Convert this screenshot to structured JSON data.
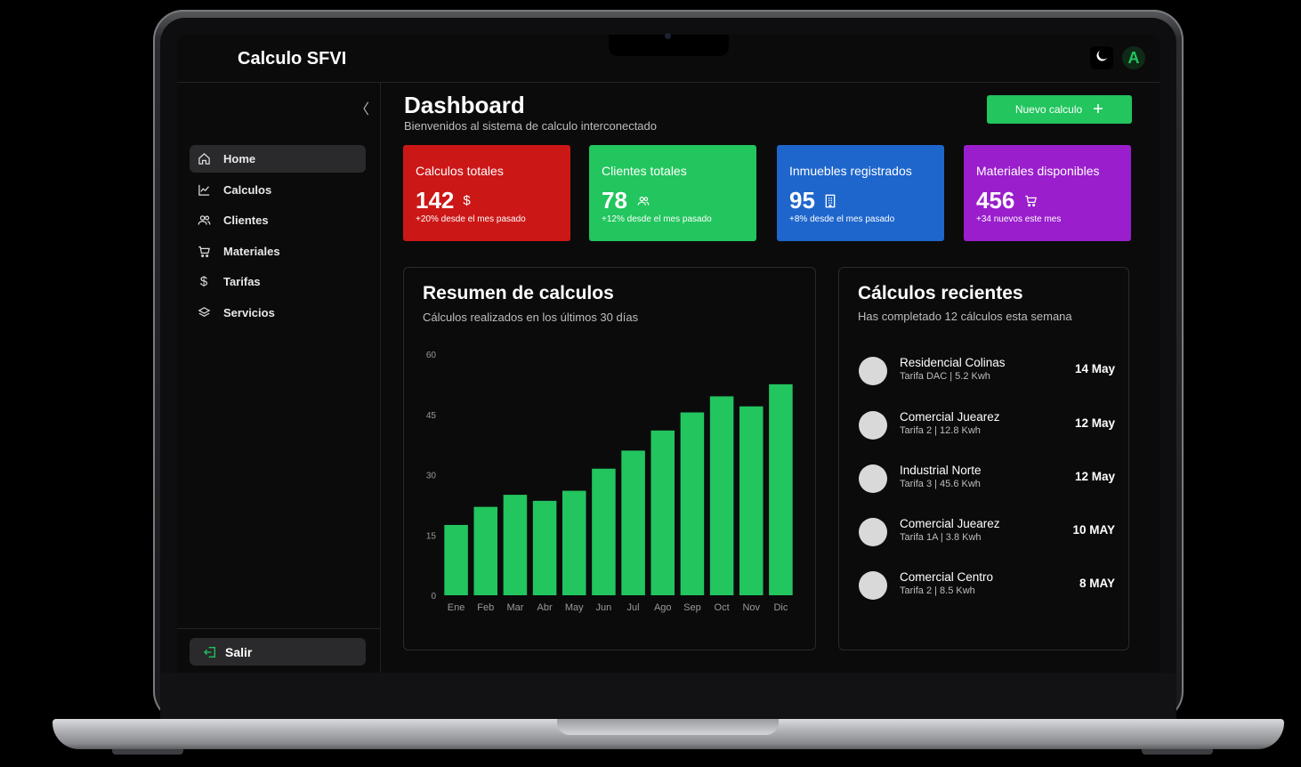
{
  "app": {
    "title": "Calculo SFVI",
    "avatar_letter": "A"
  },
  "sidebar": {
    "collapse_glyph": "〈",
    "items": [
      {
        "label": "Home",
        "icon": "home-icon"
      },
      {
        "label": "Calculos",
        "icon": "chart-line-icon"
      },
      {
        "label": "Clientes",
        "icon": "users-icon"
      },
      {
        "label": "Materiales",
        "icon": "cart-icon"
      },
      {
        "label": "Tarifas",
        "icon": "dollar-icon"
      },
      {
        "label": "Servicios",
        "icon": "layers-icon"
      }
    ],
    "logout_label": "Salir"
  },
  "header": {
    "title": "Dashboard",
    "subtitle": "Bienvenidos al sistema de calculo interconectado",
    "new_button_label": "Nuevo calculo"
  },
  "stats": [
    {
      "title": "Calculos totales",
      "value": "142",
      "sub": "+20% desde el mes pasado",
      "color": "#cc1717",
      "icon": "dollar-icon"
    },
    {
      "title": "Clientes totales",
      "value": "78",
      "sub": "+12% desde el mes pasado",
      "color": "#22c55e",
      "icon": "users-icon"
    },
    {
      "title": "Inmuebles registrados",
      "value": "95",
      "sub": "+8% desde el mes pasado",
      "color": "#1e66cc",
      "icon": "building-icon"
    },
    {
      "title": "Materiales disponibles",
      "value": "456",
      "sub": "+34 nuevos este mes",
      "color": "#9a1ecc",
      "icon": "cart-icon"
    }
  ],
  "summary": {
    "title": "Resumen de calculos",
    "subtitle": "Cálculos realizados en los últimos 30 días"
  },
  "chart_data": {
    "type": "bar",
    "categories": [
      "Ene",
      "Feb",
      "Mar",
      "Abr",
      "May",
      "Jun",
      "Jul",
      "Ago",
      "Sep",
      "Oct",
      "Nov",
      "Dic"
    ],
    "values": [
      17.5,
      22,
      25,
      23.5,
      26,
      31.5,
      36,
      41,
      45.5,
      49.5,
      47,
      52.5
    ],
    "ylim": [
      0,
      60
    ],
    "yticks": [
      "0",
      "15",
      "30",
      "45",
      "60"
    ],
    "title": "",
    "xlabel": "",
    "ylabel": "",
    "color": "#22c55e",
    "grid": false
  },
  "recent": {
    "title": "Cálculos recientes",
    "subtitle": "Has completado 12  cálculos esta semana",
    "items": [
      {
        "name": "Residencial Colinas",
        "detail": "Tarifa DAC | 5.2 Kwh",
        "date": "14 May"
      },
      {
        "name": "Comercial Juearez",
        "detail": "Tarifa 2 | 12.8 Kwh",
        "date": "12 May"
      },
      {
        "name": "Industrial Norte",
        "detail": "Tarifa 3 | 45.6 Kwh",
        "date": "12 May"
      },
      {
        "name": "Comercial Juearez",
        "detail": "Tarifa 1A | 3.8 Kwh",
        "date": "10 MAY"
      },
      {
        "name": "Comercial Centro",
        "detail": "Tarifa 2 | 8.5 Kwh",
        "date": "8 MAY"
      }
    ]
  }
}
